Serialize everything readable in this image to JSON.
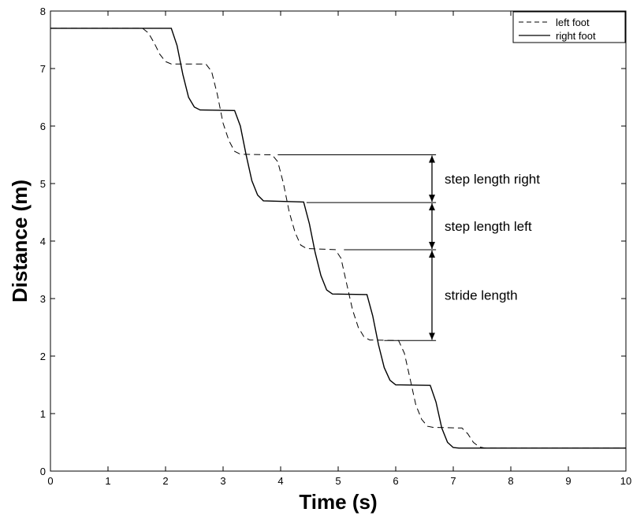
{
  "chart_data": {
    "type": "line",
    "title": "",
    "xlabel": "Time (s)",
    "ylabel": "Distance (m)",
    "xlim": [
      0,
      10
    ],
    "ylim": [
      0,
      8
    ],
    "xticks": [
      0,
      1,
      2,
      3,
      4,
      5,
      6,
      7,
      8,
      9,
      10
    ],
    "yticks": [
      0,
      1,
      2,
      3,
      4,
      5,
      6,
      7,
      8
    ],
    "grid": false,
    "legend_position": "top-right",
    "series": [
      {
        "name": "left foot",
        "style": "dashed",
        "color": "#000000",
        "points": [
          [
            0,
            7.7
          ],
          [
            1.6,
            7.7
          ],
          [
            1.7,
            7.62
          ],
          [
            1.8,
            7.45
          ],
          [
            1.9,
            7.25
          ],
          [
            2.0,
            7.12
          ],
          [
            2.1,
            7.08
          ],
          [
            2.7,
            7.08
          ],
          [
            2.8,
            6.95
          ],
          [
            2.9,
            6.55
          ],
          [
            3.0,
            6.05
          ],
          [
            3.1,
            5.75
          ],
          [
            3.2,
            5.56
          ],
          [
            3.3,
            5.51
          ],
          [
            3.85,
            5.5
          ],
          [
            3.95,
            5.38
          ],
          [
            4.05,
            5.0
          ],
          [
            4.15,
            4.5
          ],
          [
            4.25,
            4.15
          ],
          [
            4.35,
            3.93
          ],
          [
            4.45,
            3.87
          ],
          [
            4.95,
            3.85
          ],
          [
            5.05,
            3.7
          ],
          [
            5.15,
            3.25
          ],
          [
            5.25,
            2.8
          ],
          [
            5.35,
            2.5
          ],
          [
            5.45,
            2.33
          ],
          [
            5.55,
            2.28
          ],
          [
            6.05,
            2.27
          ],
          [
            6.15,
            2.05
          ],
          [
            6.25,
            1.6
          ],
          [
            6.35,
            1.15
          ],
          [
            6.45,
            0.9
          ],
          [
            6.55,
            0.78
          ],
          [
            6.65,
            0.76
          ],
          [
            7.15,
            0.75
          ],
          [
            7.25,
            0.65
          ],
          [
            7.35,
            0.5
          ],
          [
            7.45,
            0.42
          ],
          [
            7.55,
            0.4
          ],
          [
            10,
            0.4
          ]
        ]
      },
      {
        "name": "right foot",
        "style": "solid",
        "color": "#000000",
        "points": [
          [
            0,
            7.7
          ],
          [
            2.1,
            7.7
          ],
          [
            2.2,
            7.4
          ],
          [
            2.3,
            6.9
          ],
          [
            2.4,
            6.5
          ],
          [
            2.5,
            6.33
          ],
          [
            2.6,
            6.28
          ],
          [
            3.2,
            6.27
          ],
          [
            3.3,
            6.0
          ],
          [
            3.4,
            5.5
          ],
          [
            3.5,
            5.05
          ],
          [
            3.6,
            4.8
          ],
          [
            3.7,
            4.7
          ],
          [
            4.4,
            4.68
          ],
          [
            4.5,
            4.3
          ],
          [
            4.6,
            3.8
          ],
          [
            4.7,
            3.4
          ],
          [
            4.8,
            3.15
          ],
          [
            4.9,
            3.08
          ],
          [
            5.5,
            3.07
          ],
          [
            5.6,
            2.7
          ],
          [
            5.7,
            2.2
          ],
          [
            5.8,
            1.8
          ],
          [
            5.9,
            1.58
          ],
          [
            6.0,
            1.5
          ],
          [
            6.6,
            1.49
          ],
          [
            6.7,
            1.2
          ],
          [
            6.8,
            0.75
          ],
          [
            6.9,
            0.5
          ],
          [
            7.0,
            0.41
          ],
          [
            7.1,
            0.4
          ],
          [
            10,
            0.4
          ]
        ]
      }
    ],
    "annotations": [
      {
        "text": "step length right",
        "y_top": 5.5,
        "y_bottom": 4.67,
        "line_start_x": 3.95
      },
      {
        "text": "step length left",
        "y_top": 4.67,
        "y_bottom": 3.85,
        "line_start_x": 4.45
      },
      {
        "text": "stride length",
        "y_top": 3.85,
        "y_bottom": 2.27,
        "line_start_x": 5.1
      }
    ],
    "annotation_line_end_x": 6.7,
    "annotation_arrow_x": 6.63,
    "annotation_line_extra_x": [
      {
        "y": 2.27,
        "x": 5.8
      }
    ]
  }
}
